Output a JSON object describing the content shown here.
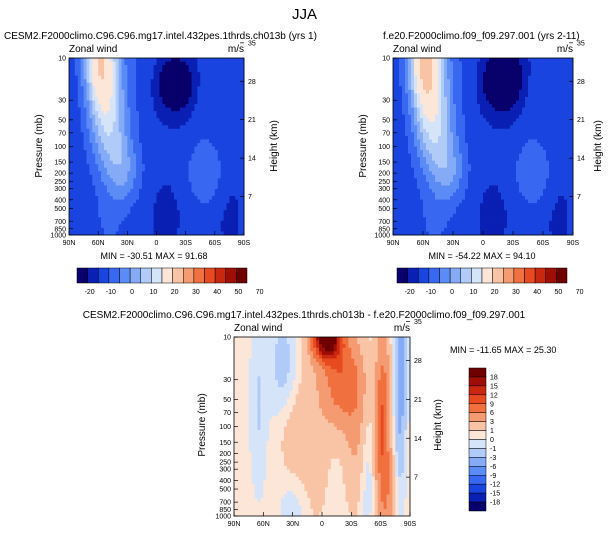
{
  "page": {
    "title": "JJA"
  },
  "chart_data": [
    {
      "type": "heatmap",
      "id": "top-left",
      "title": "CESM2.F2000climo.C96.C96.mg17.intel.432pes.1thrds.ch013b (yrs 1)",
      "left_label": "Zonal wind",
      "right_label": "m/s",
      "ylabel": "Pressure (mb)",
      "y2label": "Height (km)",
      "x_ticks": [
        "90N",
        "60N",
        "30N",
        "0",
        "30S",
        "60S",
        "90S"
      ],
      "y_ticks": [
        "10",
        "30",
        "50",
        "70",
        "100",
        "150",
        "200",
        "250",
        "300",
        "400",
        "500",
        "700",
        "850",
        "1000"
      ],
      "y2_ticks": [
        "35",
        "28",
        "21",
        "14",
        "7"
      ],
      "stats": "MIN = -30.51   MAX = 91.68",
      "min": -30.51,
      "max": 91.68,
      "colorbar": {
        "orientation": "horizontal",
        "levels": [
          -20,
          -10,
          0,
          10,
          20,
          30,
          40,
          50,
          70
        ],
        "tick_labels": [
          "-20",
          "-10",
          "0",
          "10",
          "20",
          "30",
          "40",
          "50",
          "70"
        ],
        "colors": [
          "#08006b",
          "#0a1fb3",
          "#1a44e0",
          "#3868f2",
          "#5b8cf5",
          "#85abf7",
          "#b0cbf8",
          "#d6e4fa",
          "#fbe6d8",
          "#f9c4a6",
          "#f59b72",
          "#f0703f",
          "#e84a1f",
          "#c9280f",
          "#9e0d06",
          "#6e0000"
        ]
      },
      "fields": [
        {
          "lat": -20,
          "p": 20,
          "v": -28,
          "sx": 16,
          "sy": 0.55
        },
        {
          "lat": -50,
          "p": 25,
          "v": 8,
          "sx": 11,
          "sy": 0.7
        },
        {
          "lat": 10,
          "p": 15,
          "v": 6,
          "sx": 10,
          "sy": 0.9
        },
        {
          "lat": 40,
          "p": 12,
          "v": 10,
          "sx": 12,
          "sy": 1.0
        },
        {
          "lat": 30,
          "p": 200,
          "v": 14,
          "sx": 12,
          "sy": 0.55
        },
        {
          "lat": 40,
          "p": 100,
          "v": 24,
          "sx": 12,
          "sy": 1.0
        },
        {
          "lat": 55,
          "p": 25,
          "v": 46,
          "sx": 12,
          "sy": 1.2
        },
        {
          "lat": 60,
          "p": 10,
          "v": 40,
          "sx": 11,
          "sy": 0.7
        },
        {
          "lat": -50,
          "p": 200,
          "v": 16,
          "sx": 13,
          "sy": 0.6
        },
        {
          "lat": -10,
          "p": 600,
          "v": -6,
          "sx": 12,
          "sy": 0.7
        },
        {
          "lat": -75,
          "p": 600,
          "v": -5,
          "sx": 10,
          "sy": 0.8
        },
        {
          "lat": 50,
          "p": 800,
          "v": 6,
          "sx": 12,
          "sy": 0.6
        }
      ],
      "base": -7
    },
    {
      "type": "heatmap",
      "id": "top-right",
      "title": "f.e20.F2000climo.f09_f09.297.001 (yrs 2-11)",
      "left_label": "Zonal wind",
      "right_label": "m/s",
      "ylabel": "Pressure (mb)",
      "y2label": "Height (km)",
      "x_ticks": [
        "90N",
        "60N",
        "30N",
        "0",
        "30S",
        "60S",
        "90S"
      ],
      "y_ticks": [
        "10",
        "30",
        "50",
        "70",
        "100",
        "150",
        "200",
        "250",
        "300",
        "400",
        "500",
        "700",
        "850",
        "1000"
      ],
      "y2_ticks": [
        "35",
        "28",
        "21",
        "14",
        "7"
      ],
      "stats": "MIN = -54.22   MAX = 94.10",
      "min": -54.22,
      "max": 94.1,
      "colorbar": {
        "orientation": "horizontal",
        "levels": [
          -20,
          -10,
          0,
          10,
          20,
          30,
          40,
          50,
          70
        ],
        "tick_labels": [
          "-20",
          "-10",
          "0",
          "10",
          "20",
          "30",
          "40",
          "50",
          "70"
        ],
        "colors": [
          "#08006b",
          "#0a1fb3",
          "#1a44e0",
          "#3868f2",
          "#5b8cf5",
          "#85abf7",
          "#b0cbf8",
          "#d6e4fa",
          "#fbe6d8",
          "#f9c4a6",
          "#f59b72",
          "#f0703f",
          "#e84a1f",
          "#c9280f",
          "#9e0d06",
          "#6e0000"
        ]
      },
      "fields": [
        {
          "lat": -20,
          "p": 18,
          "v": -32,
          "sx": 17,
          "sy": 0.6
        },
        {
          "lat": -50,
          "p": 25,
          "v": 8,
          "sx": 11,
          "sy": 0.7
        },
        {
          "lat": 10,
          "p": 15,
          "v": 6,
          "sx": 10,
          "sy": 0.9
        },
        {
          "lat": 40,
          "p": 12,
          "v": 10,
          "sx": 12,
          "sy": 1.0
        },
        {
          "lat": 30,
          "p": 200,
          "v": 14,
          "sx": 12,
          "sy": 0.55
        },
        {
          "lat": 40,
          "p": 100,
          "v": 24,
          "sx": 12,
          "sy": 1.0
        },
        {
          "lat": 55,
          "p": 25,
          "v": 52,
          "sx": 12,
          "sy": 1.2
        },
        {
          "lat": 60,
          "p": 10,
          "v": 44,
          "sx": 11,
          "sy": 0.7
        },
        {
          "lat": -50,
          "p": 200,
          "v": 16,
          "sx": 13,
          "sy": 0.6
        },
        {
          "lat": -10,
          "p": 600,
          "v": -6,
          "sx": 12,
          "sy": 0.7
        },
        {
          "lat": -75,
          "p": 600,
          "v": -5,
          "sx": 10,
          "sy": 0.8
        },
        {
          "lat": 50,
          "p": 800,
          "v": 6,
          "sx": 12,
          "sy": 0.6
        }
      ],
      "base": -7
    },
    {
      "type": "heatmap",
      "id": "bottom-diff",
      "title": "CESM2.F2000climo.C96.C96.mg17.intel.432pes.1thrds.ch013b - f.e20.F2000climo.f09_f09.297.001",
      "left_label": "Zonal wind",
      "right_label": "m/s",
      "ylabel": "Pressure (mb)",
      "y2label": "Height (km)",
      "x_ticks": [
        "90N",
        "60N",
        "30N",
        "0",
        "30S",
        "60S",
        "90S"
      ],
      "y_ticks": [
        "10",
        "30",
        "50",
        "70",
        "100",
        "150",
        "200",
        "250",
        "300",
        "400",
        "500",
        "700",
        "850",
        "1000"
      ],
      "y2_ticks": [
        "35",
        "28",
        "21",
        "14",
        "7"
      ],
      "stats": "MIN = -11.65   MAX = 25.30",
      "min": -11.65,
      "max": 25.3,
      "colorbar": {
        "orientation": "vertical",
        "levels": [
          -18,
          -15,
          -12,
          -9,
          -6,
          -3,
          -1,
          0,
          1,
          3,
          6,
          9,
          12,
          15,
          18
        ],
        "tick_labels": [
          "18",
          "15",
          "12",
          "9",
          "6",
          "3",
          "1",
          "0",
          "-1",
          "-3",
          "-6",
          "-9",
          "-12",
          "-15",
          "-18"
        ],
        "colors": [
          "#08006b",
          "#0a1fb3",
          "#1a44e0",
          "#3868f2",
          "#5b8cf5",
          "#85abf7",
          "#b0cbf8",
          "#d6e4fa",
          "#fbe6d8",
          "#f9c4a6",
          "#f59b72",
          "#f0703f",
          "#e84a1f",
          "#c9280f",
          "#9e0d06",
          "#6e0000"
        ]
      },
      "fields": [
        {
          "lat": -5,
          "p": 10,
          "v": 22,
          "sx": 10,
          "sy": 0.4
        },
        {
          "lat": -20,
          "p": 30,
          "v": 8,
          "sx": 14,
          "sy": 0.8
        },
        {
          "lat": -35,
          "p": 120,
          "v": 3,
          "sx": 8,
          "sy": 1.3
        },
        {
          "lat": 12,
          "p": 200,
          "v": 2,
          "sx": 12,
          "sy": 1.5
        },
        {
          "lat": -62,
          "p": 100,
          "v": 9,
          "sx": 5,
          "sy": 1.6
        },
        {
          "lat": -68,
          "p": 600,
          "v": 3,
          "sx": 5,
          "sy": 0.8
        },
        {
          "lat": -80,
          "p": 25,
          "v": -5,
          "sx": 4,
          "sy": 1.8
        },
        {
          "lat": 65,
          "p": 60,
          "v": -1.5,
          "sx": 6,
          "sy": 1.5
        },
        {
          "lat": 40,
          "p": 20,
          "v": -2,
          "sx": 10,
          "sy": 1.0
        },
        {
          "lat": -45,
          "p": 300,
          "v": -1.5,
          "sx": 6,
          "sy": 1.2
        },
        {
          "lat": 25,
          "p": 700,
          "v": -1.5,
          "sx": 12,
          "sy": 0.8
        },
        {
          "lat": 30,
          "p": 150,
          "v": 1.5,
          "sx": 10,
          "sy": 0.8
        }
      ],
      "base": 0.4
    }
  ]
}
